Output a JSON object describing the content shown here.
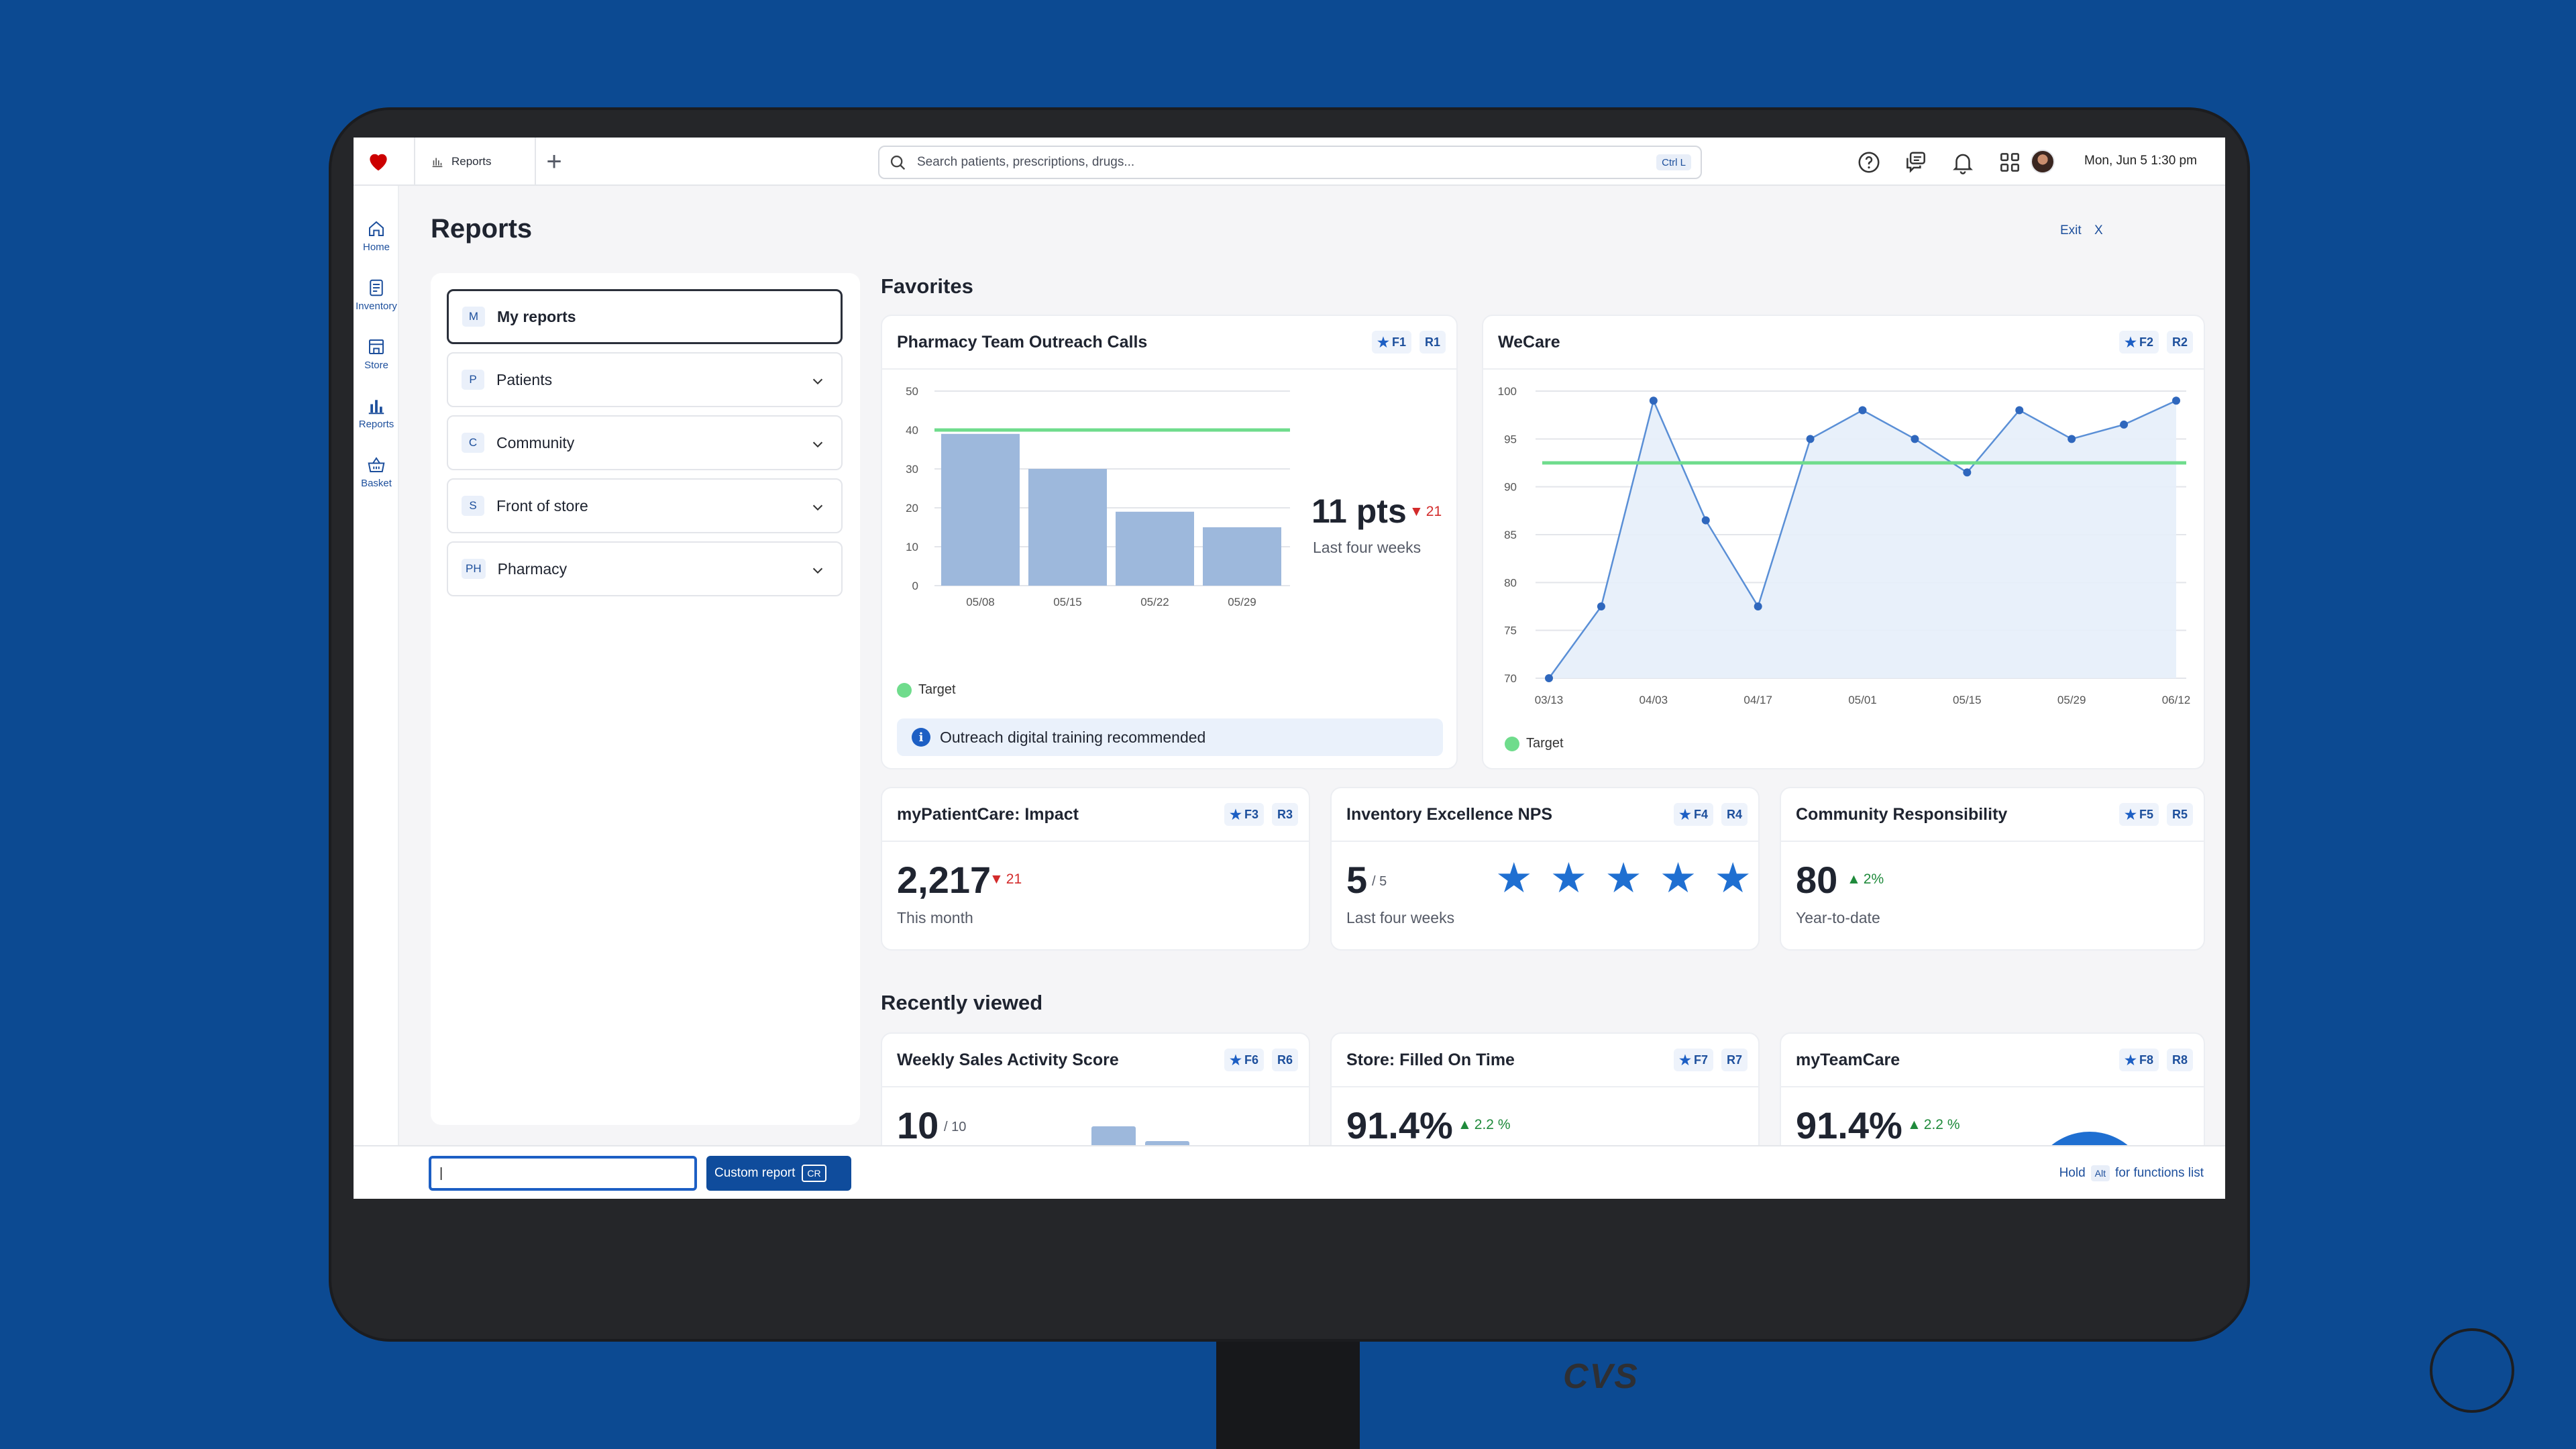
{
  "topbar": {
    "tab_label": "Reports",
    "search_placeholder": "Search patients, prescriptions, drugs...",
    "search_shortcut": "Ctrl L",
    "datetime": "Mon, Jun 5 1:30 pm"
  },
  "rail": {
    "items": [
      {
        "label": "Home",
        "icon": "home-icon"
      },
      {
        "label": "Inventory",
        "icon": "inventory-icon"
      },
      {
        "label": "Store",
        "icon": "store-icon"
      },
      {
        "label": "Reports",
        "icon": "reports-icon"
      },
      {
        "label": "Basket",
        "icon": "basket-icon"
      }
    ]
  },
  "page": {
    "title": "Reports",
    "exit_label": "Exit",
    "exit_icon": "X"
  },
  "report_nav": [
    {
      "badge": "M",
      "label": "My reports",
      "active": true
    },
    {
      "badge": "P",
      "label": "Patients"
    },
    {
      "badge": "C",
      "label": "Community"
    },
    {
      "badge": "S",
      "label": "Front of store"
    },
    {
      "badge": "PH",
      "label": "Pharmacy"
    }
  ],
  "sections": {
    "favorites": "Favorites",
    "recently_viewed": "Recently viewed"
  },
  "cards": {
    "outreach": {
      "title": "Pharmacy Team Outreach Calls",
      "fav_key": "F1",
      "report_key": "R1",
      "value": "11 pts",
      "delta": "21",
      "sub": "Last four weeks",
      "legend": "Target",
      "banner": "Outreach digital training recommended"
    },
    "wecare": {
      "title": "WeCare",
      "fav_key": "F2",
      "report_key": "R2",
      "legend": "Target"
    },
    "impact": {
      "title": "myPatientCare: Impact",
      "fav_key": "F3",
      "report_key": "R3",
      "value": "2,217",
      "delta": "21",
      "sub": "This month"
    },
    "nps": {
      "title": "Inventory Excellence NPS",
      "fav_key": "F4",
      "report_key": "R4",
      "value": "5",
      "value_suffix": "/ 5",
      "sub": "Last four weeks",
      "rating": 5,
      "rating_max": 5
    },
    "community": {
      "title": "Community Responsibility",
      "fav_key": "F5",
      "report_key": "R5",
      "value": "80",
      "delta": "2%",
      "sub": "Year-to-date"
    },
    "weekly_sales": {
      "title": "Weekly Sales Activity Score",
      "fav_key": "F6",
      "report_key": "R6",
      "value": "10",
      "value_suffix": "/ 10"
    },
    "filled_on_time": {
      "title": "Store: Filled On Time",
      "fav_key": "F7",
      "report_key": "R7",
      "value": "91.4%",
      "delta": "2.2 %"
    },
    "myteamcare": {
      "title": "myTeamCare",
      "fav_key": "F8",
      "report_key": "R8",
      "value": "91.4%",
      "delta": "2.2 %"
    }
  },
  "chart_data": [
    {
      "type": "bar",
      "categories": [
        "05/08",
        "05/15",
        "05/22",
        "05/29"
      ],
      "values": [
        39,
        30,
        19,
        15
      ],
      "ylim": [
        0,
        50
      ],
      "yticks": [
        0,
        10,
        20,
        30,
        40,
        50
      ],
      "target": 40,
      "legend": [
        "Target"
      ],
      "colors": {
        "bar": "#9db8dc",
        "target": "#6fdc8c"
      }
    },
    {
      "type": "area",
      "x_ticks": [
        "03/13",
        "04/03",
        "04/17",
        "05/01",
        "05/15",
        "05/29",
        "06/12"
      ],
      "values": [
        70,
        77.5,
        99,
        86.5,
        77.5,
        95,
        98,
        95,
        91.5,
        98,
        95,
        96.5,
        99
      ],
      "ylim": [
        70,
        100
      ],
      "yticks": [
        70,
        75,
        80,
        85,
        90,
        95,
        100
      ],
      "target": 92.5,
      "legend": [
        "Target"
      ],
      "colors": {
        "line": "#5a8fd6",
        "fill": "#e6eefa",
        "target": "#6fdc8c"
      }
    }
  ],
  "bottombar": {
    "input_value": "|",
    "custom_label": "Custom report",
    "custom_key": "CR",
    "hint_pre": "Hold",
    "hint_key": "Alt",
    "hint_post": "for functions list"
  }
}
